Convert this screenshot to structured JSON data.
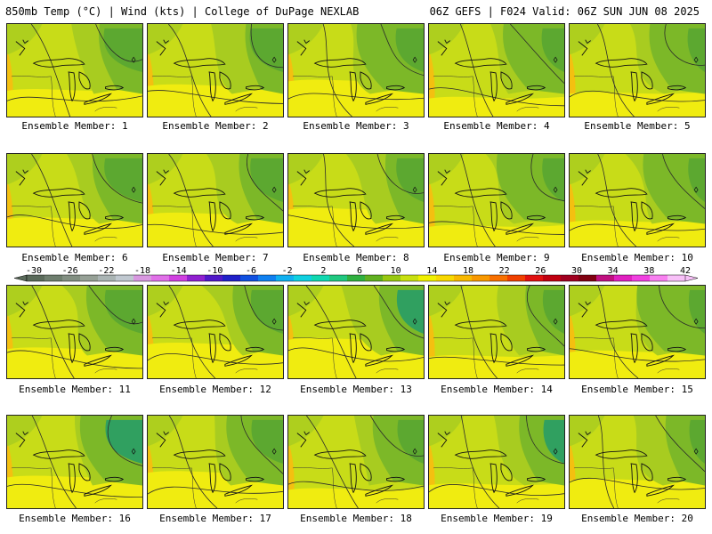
{
  "header": {
    "left": "850mb Temp (°C) | Wind (kts) | College of DuPage NEXLAB",
    "right": "06Z GEFS | F024 Valid: 06Z SUN JUN 08 2025"
  },
  "members": [
    {
      "label": "Ensemble Member: 1"
    },
    {
      "label": "Ensemble Member: 2"
    },
    {
      "label": "Ensemble Member: 3"
    },
    {
      "label": "Ensemble Member: 4"
    },
    {
      "label": "Ensemble Member: 5"
    },
    {
      "label": "Ensemble Member: 6"
    },
    {
      "label": "Ensemble Member: 7"
    },
    {
      "label": "Ensemble Member: 8"
    },
    {
      "label": "Ensemble Member: 9"
    },
    {
      "label": "Ensemble Member: 10"
    },
    {
      "label": "Ensemble Member: 11"
    },
    {
      "label": "Ensemble Member: 12"
    },
    {
      "label": "Ensemble Member: 13"
    },
    {
      "label": "Ensemble Member: 14"
    },
    {
      "label": "Ensemble Member: 15"
    },
    {
      "label": "Ensemble Member: 16"
    },
    {
      "label": "Ensemble Member: 17"
    },
    {
      "label": "Ensemble Member: 18"
    },
    {
      "label": "Ensemble Member: 19"
    },
    {
      "label": "Ensemble Member: 20"
    }
  ],
  "colorbar": {
    "labels": [
      "-30",
      "-26",
      "-22",
      "-18",
      "-14",
      "-10",
      "-6",
      "-2",
      "2",
      "6",
      "10",
      "14",
      "18",
      "22",
      "26",
      "30",
      "34",
      "38",
      "42"
    ],
    "colors": [
      "#5a6a5a",
      "#6e7e6e",
      "#828f82",
      "#96a096",
      "#aab4b4",
      "#c0c8d0",
      "#d898e0",
      "#e070e8",
      "#d040e0",
      "#9020d0",
      "#5018c8",
      "#2020c8",
      "#1050e0",
      "#1080f0",
      "#10b0f0",
      "#10d0e0",
      "#10d8b0",
      "#20c880",
      "#30b040",
      "#60b020",
      "#98c810",
      "#c8e010",
      "#f0f000",
      "#f8d800",
      "#f8b800",
      "#f89800",
      "#f87000",
      "#f04000",
      "#e01010",
      "#c00010",
      "#a00020",
      "#800010",
      "#c01080",
      "#e020c0",
      "#f040e0",
      "#f880f0",
      "#f8c0f8"
    ]
  },
  "map_colors": {
    "yellow": "#f0ec10",
    "yellow_green": "#c8dc18",
    "light_green": "#a8cc20",
    "green": "#7cb828",
    "dark_green": "#5ca830",
    "teal": "#30a060",
    "orange": "#f4c010"
  }
}
